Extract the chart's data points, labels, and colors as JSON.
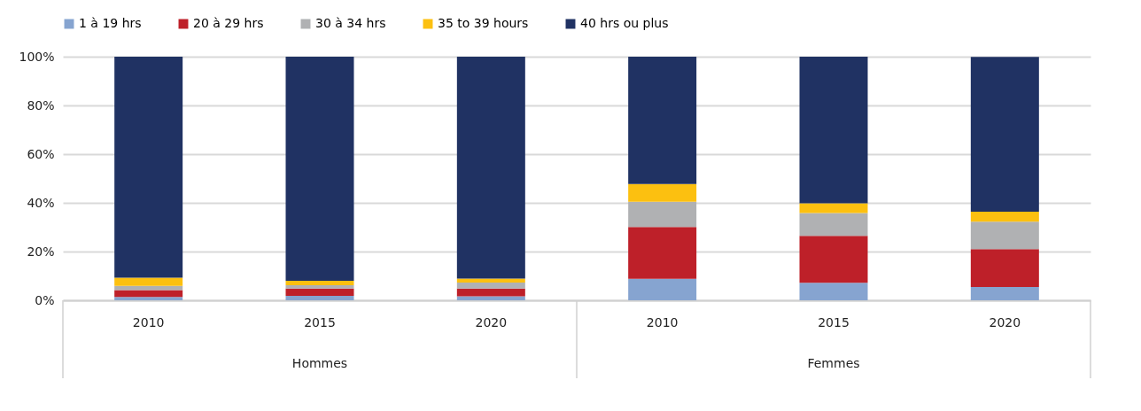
{
  "chart_data": {
    "type": "bar",
    "stacked": true,
    "categories": [
      "2010",
      "2015",
      "2020",
      "2010",
      "2015",
      "2020"
    ],
    "annotations": [
      "Hommes",
      "Femmes"
    ],
    "series": [
      {
        "name": "1 à 19 hrs",
        "color": "#86a4d0",
        "values": [
          1.4,
          1.8,
          1.6,
          8.8,
          7.2,
          5.5
        ]
      },
      {
        "name": "20 à 29 hrs",
        "color": "#be2029",
        "values": [
          2.8,
          3.0,
          3.2,
          21.3,
          19.3,
          15.5
        ]
      },
      {
        "name": "30 à 34 hrs",
        "color": "#b0b1b3",
        "values": [
          1.7,
          1.4,
          2.5,
          10.4,
          9.3,
          11.3
        ]
      },
      {
        "name": "35 to 39 hours",
        "color": "#fcc010",
        "values": [
          3.4,
          1.8,
          1.6,
          7.2,
          4.0,
          4.1
        ]
      },
      {
        "name": "40 hrs ou plus",
        "color": "#203263",
        "values": [
          90.7,
          92.0,
          91.1,
          52.3,
          60.2,
          63.5
        ]
      }
    ],
    "ylim": [
      0,
      100
    ],
    "yticks": [
      {
        "value": 0,
        "label": "0%"
      },
      {
        "value": 20,
        "label": "20%"
      },
      {
        "value": 40,
        "label": "40%"
      },
      {
        "value": 60,
        "label": "60%"
      },
      {
        "value": 80,
        "label": "80%"
      },
      {
        "value": 100,
        "label": "100%"
      }
    ],
    "grid": "y",
    "legend": "top"
  }
}
